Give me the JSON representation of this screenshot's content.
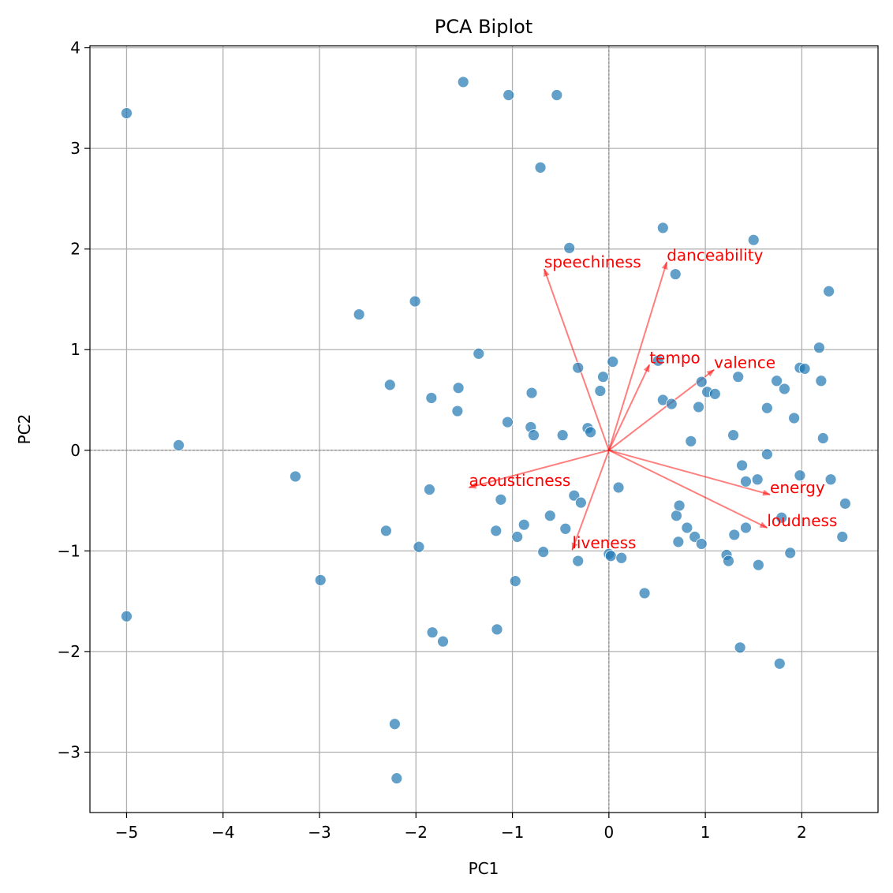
{
  "chart_data": {
    "type": "scatter",
    "title": "PCA Biplot",
    "xlabel": "PC1",
    "ylabel": "PC2",
    "xlim": [
      -5.38,
      2.79
    ],
    "ylim": [
      -3.6,
      4.02
    ],
    "xticks": [
      -5,
      -4,
      -3,
      -2,
      -1,
      0,
      1,
      2
    ],
    "yticks": [
      -3,
      -2,
      -1,
      0,
      1,
      2,
      3,
      4
    ],
    "tick_labels_x": [
      "−5",
      "−4",
      "−3",
      "−2",
      "−1",
      "0",
      "1",
      "2"
    ],
    "tick_labels_y": [
      "−3",
      "−2",
      "−1",
      "0",
      "1",
      "2",
      "3",
      "4"
    ],
    "grid": true,
    "point_color": "#1f77b4",
    "arrow_color": "#ff0000",
    "points": [
      [
        -5.0,
        3.35
      ],
      [
        -4.46,
        0.05
      ],
      [
        -5.0,
        -1.65
      ],
      [
        -3.25,
        -0.26
      ],
      [
        -2.99,
        -1.29
      ],
      [
        -2.59,
        1.35
      ],
      [
        -2.27,
        0.65
      ],
      [
        -2.31,
        -0.8
      ],
      [
        -2.01,
        1.48
      ],
      [
        -1.97,
        -0.96
      ],
      [
        -1.84,
        0.52
      ],
      [
        -1.86,
        -0.39
      ],
      [
        -1.83,
        -1.81
      ],
      [
        -1.72,
        -1.9
      ],
      [
        -1.56,
        0.62
      ],
      [
        -1.57,
        0.39
      ],
      [
        -2.22,
        -2.72
      ],
      [
        -2.2,
        -3.26
      ],
      [
        -1.51,
        3.66
      ],
      [
        -1.04,
        3.53
      ],
      [
        -0.54,
        3.53
      ],
      [
        -0.71,
        2.81
      ],
      [
        -1.35,
        0.96
      ],
      [
        -1.05,
        0.28
      ],
      [
        -1.12,
        -0.49
      ],
      [
        -1.17,
        -0.8
      ],
      [
        -1.16,
        -1.78
      ],
      [
        -0.97,
        -1.3
      ],
      [
        -0.88,
        -0.74
      ],
      [
        -0.95,
        -0.86
      ],
      [
        -0.8,
        0.57
      ],
      [
        -0.81,
        0.23
      ],
      [
        -0.78,
        0.15
      ],
      [
        -0.68,
        -1.01
      ],
      [
        -0.61,
        -0.65
      ],
      [
        -0.48,
        0.15
      ],
      [
        -0.41,
        2.01
      ],
      [
        -0.32,
        0.82
      ],
      [
        -0.36,
        -0.45
      ],
      [
        -0.45,
        -0.78
      ],
      [
        -0.32,
        -1.1
      ],
      [
        -0.29,
        -0.52
      ],
      [
        -0.22,
        0.22
      ],
      [
        -0.19,
        0.18
      ],
      [
        -0.09,
        0.59
      ],
      [
        -0.06,
        0.73
      ],
      [
        0.04,
        0.88
      ],
      [
        0.1,
        -0.37
      ],
      [
        0.0,
        -1.03
      ],
      [
        0.02,
        -1.05
      ],
      [
        0.13,
        -1.07
      ],
      [
        0.37,
        -1.42
      ],
      [
        0.56,
        2.21
      ],
      [
        0.69,
        1.75
      ],
      [
        0.51,
        0.89
      ],
      [
        0.56,
        0.5
      ],
      [
        0.65,
        0.46
      ],
      [
        0.7,
        -0.65
      ],
      [
        0.73,
        -0.55
      ],
      [
        0.81,
        -0.77
      ],
      [
        0.89,
        -0.86
      ],
      [
        0.72,
        -0.91
      ],
      [
        0.96,
        -0.93
      ],
      [
        0.85,
        0.09
      ],
      [
        0.93,
        0.43
      ],
      [
        0.96,
        0.68
      ],
      [
        1.02,
        0.58
      ],
      [
        1.1,
        0.56
      ],
      [
        1.29,
        0.15
      ],
      [
        1.34,
        0.73
      ],
      [
        1.38,
        -0.15
      ],
      [
        1.42,
        -0.31
      ],
      [
        1.54,
        -0.29
      ],
      [
        1.42,
        -0.77
      ],
      [
        1.3,
        -0.84
      ],
      [
        1.22,
        -1.04
      ],
      [
        1.24,
        -1.1
      ],
      [
        1.55,
        -1.14
      ],
      [
        1.36,
        -1.96
      ],
      [
        1.5,
        2.09
      ],
      [
        1.64,
        0.42
      ],
      [
        1.64,
        -0.04
      ],
      [
        1.74,
        0.69
      ],
      [
        1.82,
        0.61
      ],
      [
        1.92,
        0.32
      ],
      [
        1.98,
        -0.25
      ],
      [
        1.79,
        -0.67
      ],
      [
        1.88,
        -1.02
      ],
      [
        1.77,
        -2.12
      ],
      [
        1.98,
        0.82
      ],
      [
        2.03,
        0.81
      ],
      [
        2.18,
        1.02
      ],
      [
        2.2,
        0.69
      ],
      [
        2.22,
        0.12
      ],
      [
        2.28,
        1.58
      ],
      [
        2.3,
        -0.29
      ],
      [
        2.45,
        -0.53
      ],
      [
        2.42,
        -0.86
      ]
    ],
    "loadings": [
      {
        "label": "speechiness",
        "x": -0.67,
        "y": 1.8
      },
      {
        "label": "danceability",
        "x": 0.6,
        "y": 1.87
      },
      {
        "label": "tempo",
        "x": 0.42,
        "y": 0.85
      },
      {
        "label": "valence",
        "x": 1.09,
        "y": 0.8
      },
      {
        "label": "energy",
        "x": 1.67,
        "y": -0.44
      },
      {
        "label": "loudness",
        "x": 1.64,
        "y": -0.77
      },
      {
        "label": "acousticness",
        "x": -1.45,
        "y": -0.37
      },
      {
        "label": "liveness",
        "x": -0.38,
        "y": -0.99
      }
    ]
  }
}
